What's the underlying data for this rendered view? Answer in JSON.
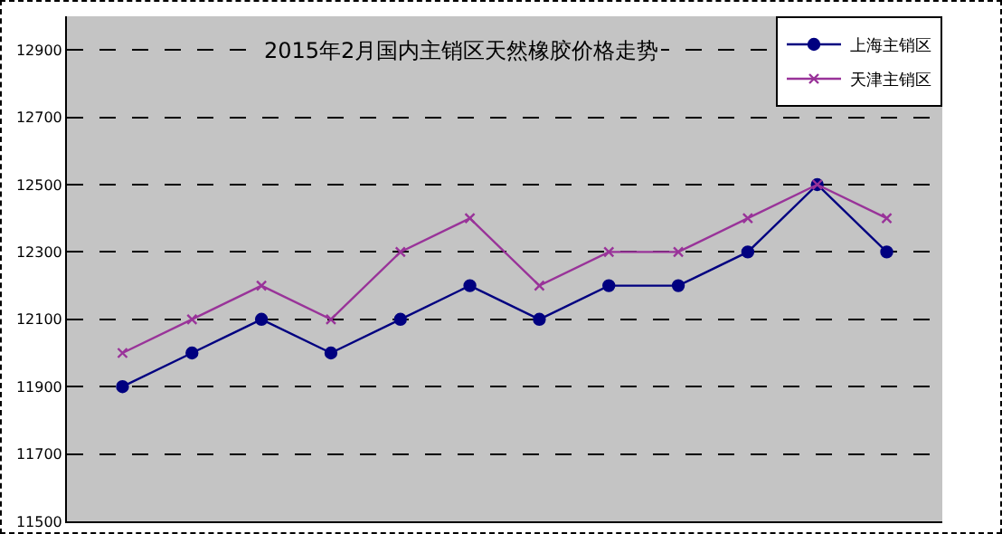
{
  "chart_data": {
    "type": "line",
    "title": "2015年2月国内主销区天然橡胶价格走势",
    "categories": [
      null,
      null,
      null,
      null,
      null,
      null,
      null,
      null,
      null,
      null,
      null,
      null
    ],
    "series": [
      {
        "name": "上海主销区",
        "color": "#000080",
        "marker": "circle",
        "values": [
          11900,
          12000,
          12100,
          12000,
          12100,
          12200,
          12100,
          12200,
          12200,
          12300,
          12500,
          12300
        ]
      },
      {
        "name": "天津主销区",
        "color": "#993399",
        "marker": "cross",
        "values": [
          12000,
          12100,
          12200,
          12100,
          12300,
          12400,
          12200,
          12300,
          12300,
          12400,
          12500,
          12400
        ]
      }
    ],
    "ylim": [
      11500,
      13000
    ],
    "yticks": [
      11500,
      11700,
      11900,
      12100,
      12300,
      12500,
      12700,
      12900
    ],
    "grid": "y",
    "legend": "top right",
    "tick_labels": "y",
    "line_style": "solid"
  }
}
